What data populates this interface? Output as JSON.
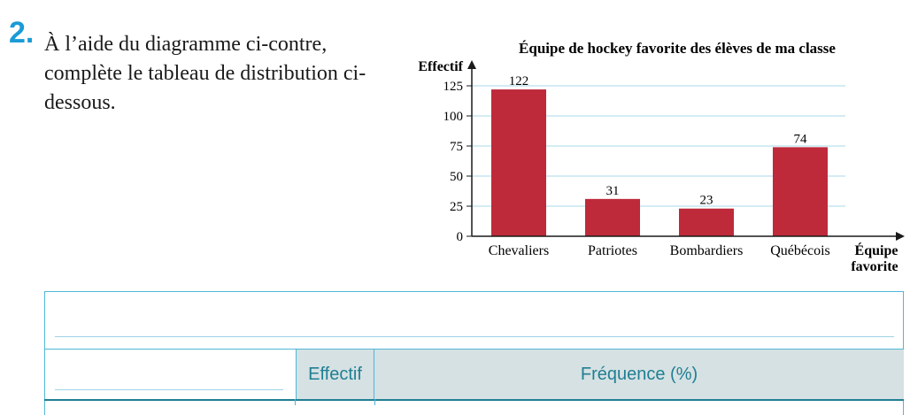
{
  "question": {
    "number": "2.",
    "text": "À l’aide du diagramme ci-contre, complète le tableau de distribution ci-dessous."
  },
  "chart_data": {
    "type": "bar",
    "title": "Équipe de hockey favorite des élèves de ma classe",
    "ylabel": "Effectif",
    "xlabel": [
      "Équipe",
      "favorite"
    ],
    "categories": [
      "Chevaliers",
      "Patriotes",
      "Bombardiers",
      "Québécois"
    ],
    "values": [
      122,
      31,
      23,
      74
    ],
    "yticks": [
      0,
      25,
      50,
      75,
      100,
      125
    ],
    "ylim": [
      0,
      125
    ],
    "grid": true,
    "bar_color": "#be2a3a",
    "grid_color": "#a8d8ea"
  },
  "table": {
    "col_effectif": "Effectif",
    "col_frequence": "Fréquence (%)"
  },
  "colors": {
    "accent": "#1a9bd7",
    "table_header_bg": "#d6e1e3",
    "table_header_text": "#1f7f93",
    "table_border": "#4fb7d6"
  }
}
